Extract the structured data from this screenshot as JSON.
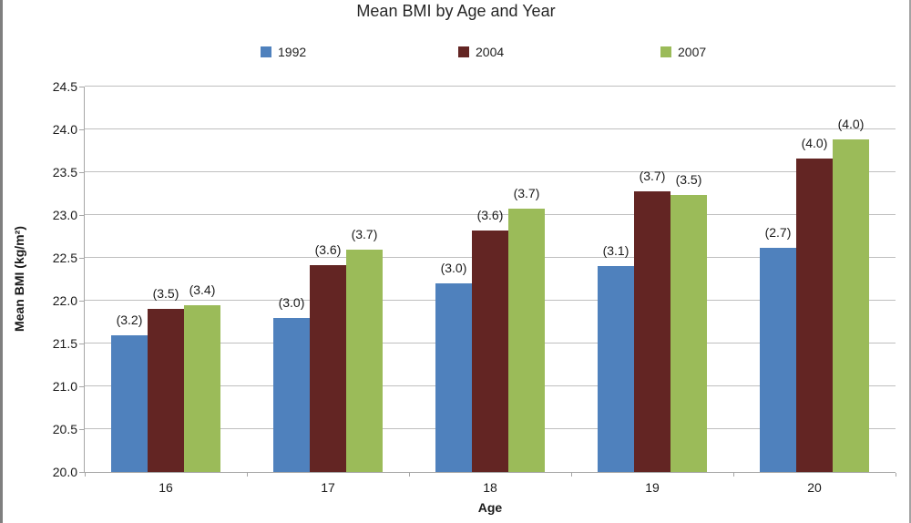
{
  "chart_data": {
    "type": "bar",
    "title": "Mean BMI by Age and Year",
    "xlabel": "Age",
    "ylabel": "Mean BMI (kg/m²)",
    "ylim": [
      20.0,
      24.5
    ],
    "y_ticks": [
      "20.0",
      "20.5",
      "21.0",
      "21.5",
      "22.0",
      "22.5",
      "23.0",
      "23.5",
      "24.0",
      "24.5"
    ],
    "categories": [
      "16",
      "17",
      "18",
      "19",
      "20"
    ],
    "series": [
      {
        "name": "1992",
        "color": "#4F81BD",
        "values": [
          21.6,
          21.8,
          22.2,
          22.4,
          22.62
        ],
        "point_labels": [
          "(3.2)",
          "(3.0)",
          "(3.0)",
          "(3.1)",
          "(2.7)"
        ]
      },
      {
        "name": "2004",
        "color": "#632523",
        "values": [
          21.9,
          22.42,
          22.82,
          23.28,
          23.66
        ],
        "point_labels": [
          "(3.5)",
          "(3.6)",
          "(3.6)",
          "(3.7)",
          "(4.0)"
        ]
      },
      {
        "name": "2007",
        "color": "#9BBB59",
        "values": [
          21.95,
          22.6,
          23.07,
          23.23,
          23.88
        ],
        "point_labels": [
          "(3.4)",
          "(3.7)",
          "(3.7)",
          "(3.5)",
          "(4.0)"
        ]
      }
    ],
    "legend_position": "top",
    "grid": true,
    "gridline_color": "#BFBFBF",
    "axis_color": "#A6A6A6"
  }
}
